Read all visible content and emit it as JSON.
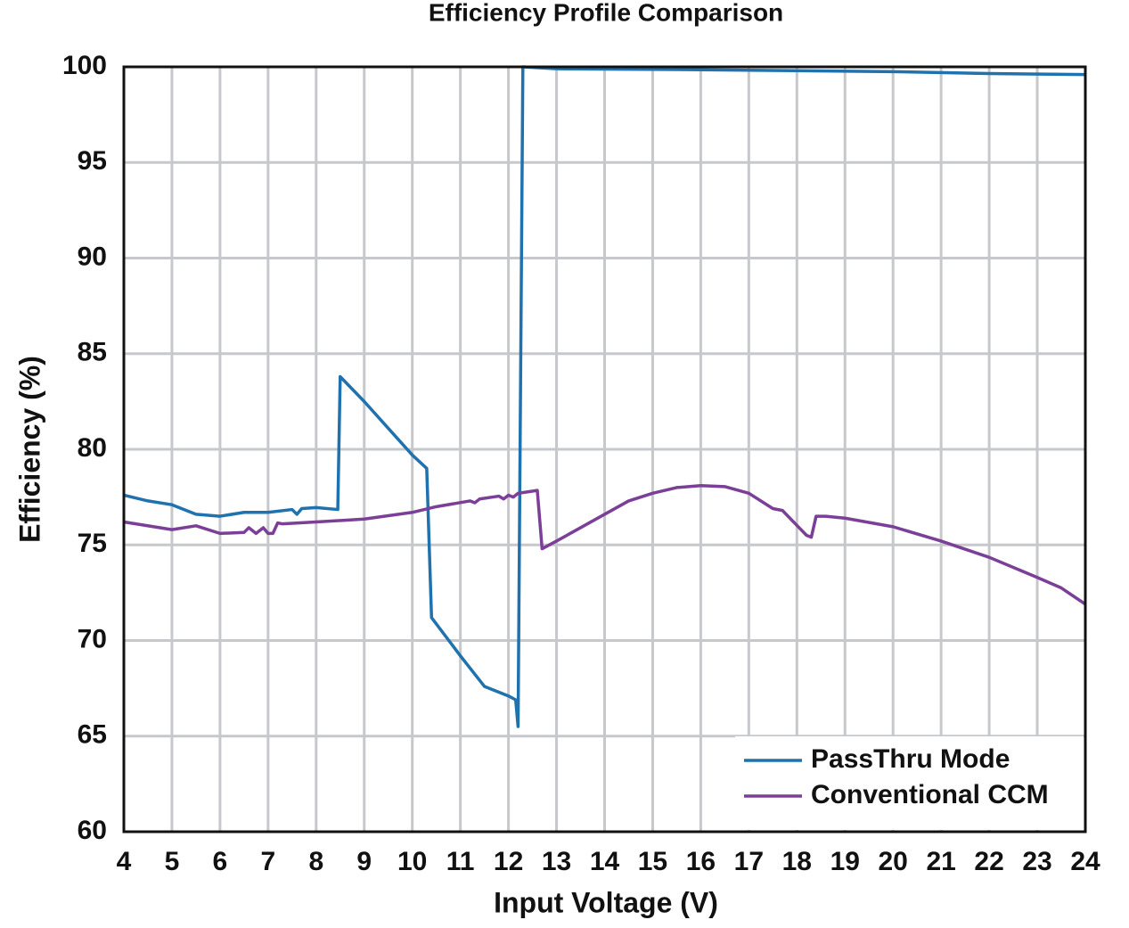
{
  "chart_data": {
    "type": "line",
    "title": "Efficiency Profile Comparison",
    "x_label": "Input Voltage (V)",
    "y_label": "Efficiency (%)",
    "xlim": [
      4,
      24
    ],
    "xticks": [
      4,
      5,
      6,
      7,
      8,
      9,
      10,
      11,
      12,
      13,
      14,
      15,
      16,
      17,
      18,
      19,
      20,
      21,
      22,
      23,
      24
    ],
    "ylim": [
      60,
      100
    ],
    "yticks": [
      60,
      65,
      70,
      75,
      80,
      85,
      90,
      95,
      100
    ],
    "grid": true,
    "legend": "lower right",
    "series": [
      {
        "name": "PassThru Mode",
        "color": "#1f72ae",
        "x": [
          4,
          4.5,
          5,
          5.5,
          6,
          6.5,
          7,
          7.5,
          7.6,
          7.7,
          8,
          8.45,
          8.5,
          9,
          9.5,
          10,
          10.3,
          10.4,
          11,
          11.5,
          12,
          12.15,
          12.2,
          12.3,
          13,
          16,
          20,
          22,
          24
        ],
        "values": [
          77.6,
          77.3,
          77.1,
          76.6,
          76.5,
          76.7,
          76.7,
          76.85,
          76.6,
          76.9,
          76.95,
          76.85,
          83.8,
          82.5,
          81.1,
          79.7,
          79.0,
          71.2,
          69.2,
          67.6,
          67.1,
          66.9,
          65.5,
          100,
          99.9,
          99.85,
          99.75,
          99.65,
          99.6
        ]
      },
      {
        "name": "Conventional CCM",
        "color": "#7b3f98",
        "x": [
          4,
          5,
          5.5,
          6,
          6.5,
          6.6,
          6.75,
          6.9,
          7,
          7.1,
          7.2,
          7.3,
          8,
          9,
          10,
          10.5,
          11.2,
          11.3,
          11.4,
          11.8,
          11.9,
          12,
          12.1,
          12.2,
          12.6,
          12.7,
          13,
          13.5,
          14,
          14.5,
          15,
          15.5,
          16,
          16.5,
          17,
          17.5,
          17.7,
          18.2,
          18.3,
          18.4,
          18.6,
          19,
          20,
          21,
          22,
          23,
          23.5,
          24
        ],
        "values": [
          76.2,
          75.8,
          76.0,
          75.6,
          75.65,
          75.9,
          75.6,
          75.9,
          75.6,
          75.6,
          76.15,
          76.1,
          76.2,
          76.35,
          76.7,
          77.0,
          77.3,
          77.2,
          77.4,
          77.55,
          77.4,
          77.6,
          77.5,
          77.7,
          77.85,
          74.8,
          75.2,
          75.9,
          76.6,
          77.3,
          77.7,
          78.0,
          78.1,
          78.05,
          77.7,
          76.9,
          76.8,
          75.5,
          75.4,
          76.5,
          76.5,
          76.4,
          75.95,
          75.2,
          74.35,
          73.3,
          72.75,
          71.9
        ]
      }
    ]
  }
}
